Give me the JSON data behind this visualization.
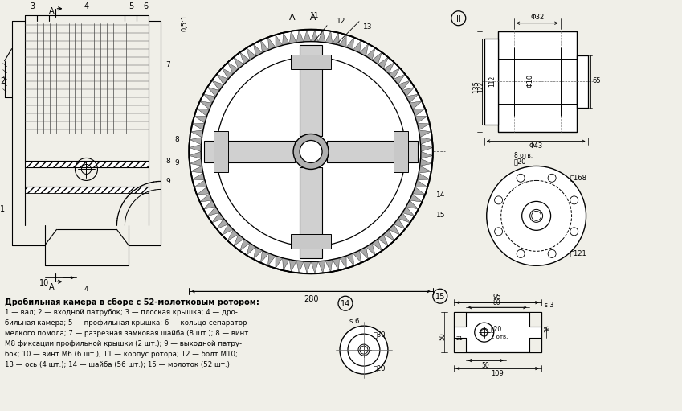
{
  "bg_color": "#f0efe8",
  "title": "Дробильная камера в сборе с 52-молотковым ротором:",
  "description_lines": [
    "1 — вал; 2 — входной патрубок; 3 — плоская крышка; 4 — дро-",
    "бильная камера; 5 — профильная крышка; 6 — кольцо-сепаратор",
    "мелкого помола; 7 — разрезная замковая шайба (8 шт.); 8 — винт",
    "М8 фиксации профильной крышки (2 шт.); 9 — выходной патру-",
    "бок; 10 — винт М6 (6 шт.); 11 — корпус ротора; 12 — болт М10;",
    "13 — ось (4 шт.); 14 — шайба (56 шт.); 15 — молоток (52 шт.)"
  ]
}
